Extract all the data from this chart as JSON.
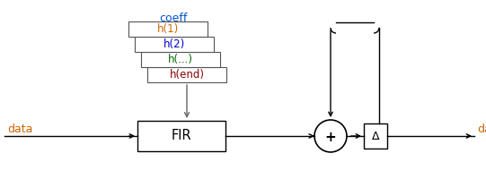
{
  "bg_color": "#ffffff",
  "coeff_color": "#0055cc",
  "h1_color": "#cc6600",
  "h2_color": "#0000cc",
  "h3_color": "#006600",
  "h4_color": "#880000",
  "data_color": "#cc6600",
  "coeff_label": "coeff",
  "h_labels": [
    "h(1)",
    "h(2)",
    "h(...)",
    "h(end)"
  ],
  "fir_label": "FIR",
  "plus_label": "+",
  "data_in_label": "data",
  "data_out_label": "data",
  "fig_width": 5.41,
  "fig_height": 2.09,
  "dpi": 100
}
